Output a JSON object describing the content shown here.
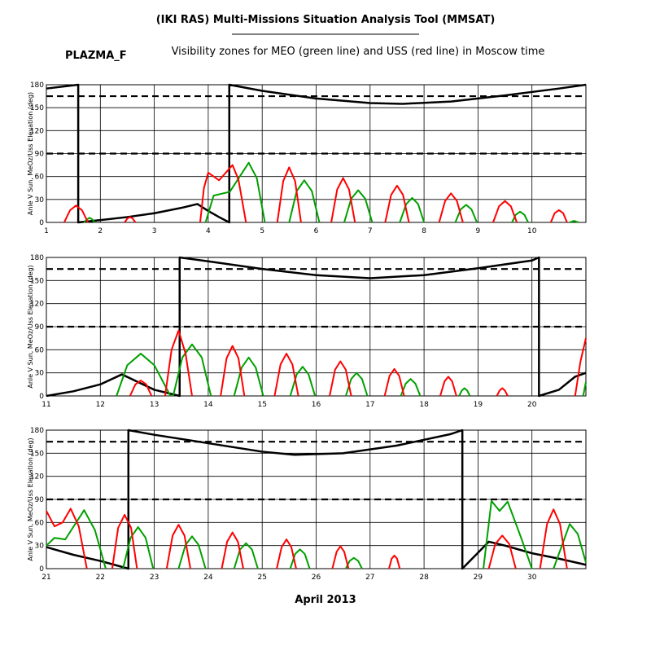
{
  "header": {
    "title": "(IKI RAS) Multi-Missions Situation Analysis Tool (MMSAT)",
    "satellite": "PLAZMA_F",
    "subtitle": "Visibility zones for MEO (green line) and USS (red line) in Moscow time"
  },
  "xlabel": "April 2013",
  "chart_data": [
    {
      "type": "line",
      "ylabel": "Anle V Sun, MeOz/Uss Elevation (deg)",
      "xlim": [
        1,
        11
      ],
      "xticks": [
        1,
        2,
        3,
        4,
        5,
        6,
        7,
        8,
        9,
        10
      ],
      "ylim": [
        0,
        180
      ],
      "yticks": [
        0,
        30,
        60,
        90,
        120,
        150,
        180
      ],
      "grid": true,
      "reference_lines": [
        165,
        90
      ],
      "series": [
        {
          "color": "#000000",
          "x": [
            1,
            1.59,
            1.59,
            2,
            2.5,
            3,
            3.5,
            3.8,
            4.0,
            4.2,
            4.39,
            4.39,
            5,
            6,
            7,
            7.6,
            8.5,
            9.5,
            10.5,
            11
          ],
          "values": [
            175,
            180,
            0,
            3,
            7,
            12,
            19,
            24,
            15,
            7,
            0,
            180,
            172,
            162,
            156,
            155,
            158,
            166,
            175,
            180
          ]
        },
        {
          "color": "#00a000",
          "x": [
            1.7,
            1.75,
            1.8,
            1.85,
            1.9,
            null,
            3.95,
            4.1,
            4.4,
            4.75,
            4.9,
            5.05,
            null,
            5.5,
            5.64,
            5.78,
            5.92,
            6.06,
            null,
            6.52,
            6.65,
            6.78,
            6.91,
            7.04,
            null,
            7.55,
            7.67,
            7.78,
            7.89,
            8.0,
            null,
            8.58,
            8.68,
            8.78,
            8.88,
            8.98,
            null,
            9.63,
            9.7,
            9.78,
            9.86,
            9.93,
            null,
            10.7,
            10.78,
            10.86
          ],
          "values": [
            0,
            4,
            6,
            4,
            0,
            null,
            0,
            35,
            40,
            78,
            58,
            0,
            null,
            0,
            41,
            55,
            41,
            0,
            null,
            0,
            31,
            42,
            31,
            0,
            null,
            0,
            24,
            32,
            24,
            0,
            null,
            0,
            17,
            23,
            17,
            0,
            null,
            0,
            10,
            14,
            10,
            0,
            null,
            0,
            2,
            0
          ]
        },
        {
          "color": "#ff0000",
          "x": [
            1.33,
            1.44,
            1.55,
            1.66,
            1.77,
            null,
            2.45,
            2.5,
            2.55,
            2.6,
            2.65,
            null,
            3.85,
            3.92,
            4.0,
            4.2,
            4.45,
            4.56,
            4.7,
            null,
            5.28,
            5.39,
            5.5,
            5.61,
            5.72,
            null,
            6.28,
            6.39,
            6.5,
            6.61,
            6.72,
            null,
            7.28,
            7.39,
            7.5,
            7.61,
            7.72,
            null,
            8.28,
            8.39,
            8.5,
            8.61,
            8.72,
            null,
            9.28,
            9.39,
            9.5,
            9.61,
            9.72,
            null,
            10.35,
            10.42,
            10.5,
            10.58,
            10.65
          ],
          "values": [
            0,
            16,
            22,
            16,
            0,
            null,
            0,
            5,
            7,
            5,
            0,
            null,
            0,
            45,
            65,
            55,
            75,
            56,
            0,
            null,
            0,
            54,
            72,
            54,
            0,
            null,
            0,
            43,
            58,
            43,
            0,
            null,
            0,
            36,
            48,
            36,
            0,
            null,
            0,
            28,
            38,
            28,
            0,
            null,
            0,
            21,
            28,
            21,
            0,
            null,
            0,
            12,
            16,
            12,
            0
          ]
        }
      ]
    },
    {
      "type": "line",
      "ylabel": "Anle V Sun, MeOz/Uss Elevation (deg)",
      "xlim": [
        11,
        21
      ],
      "xticks": [
        11,
        12,
        13,
        14,
        15,
        16,
        17,
        18,
        19,
        20
      ],
      "ylim": [
        0,
        180
      ],
      "yticks": [
        0,
        30,
        60,
        90,
        120,
        150,
        180
      ],
      "grid": true,
      "reference_lines": [
        165,
        90
      ],
      "series": [
        {
          "color": "#000000",
          "x": [
            11,
            11.5,
            12,
            12.4,
            12.7,
            13,
            13.47,
            13.47,
            14,
            15,
            16,
            17,
            18,
            19,
            20,
            20.13,
            20.13,
            20.5,
            20.8,
            21
          ],
          "values": [
            0,
            6,
            15,
            28,
            18,
            8,
            0,
            180,
            175,
            165,
            157,
            153,
            157,
            166,
            176,
            180,
            0,
            8,
            25,
            30
          ]
        },
        {
          "color": "#00a000",
          "x": [
            12.3,
            12.5,
            12.75,
            13.0,
            13.3,
            null,
            13.35,
            13.52,
            13.7,
            13.88,
            14.05,
            null,
            14.48,
            14.62,
            14.75,
            14.88,
            15.02,
            null,
            15.52,
            15.64,
            15.75,
            15.86,
            15.98,
            null,
            16.55,
            16.65,
            16.75,
            16.85,
            16.95,
            null,
            17.57,
            17.66,
            17.75,
            17.84,
            17.93,
            null,
            18.65,
            18.7,
            18.75,
            18.8,
            18.85,
            null,
            20.95,
            21
          ],
          "values": [
            0,
            40,
            55,
            40,
            0,
            null,
            0,
            50,
            67,
            50,
            0,
            null,
            0,
            37,
            50,
            37,
            0,
            null,
            0,
            28,
            38,
            28,
            0,
            null,
            0,
            22,
            30,
            22,
            0,
            null,
            0,
            16,
            22,
            16,
            0,
            null,
            0,
            7,
            10,
            7,
            0,
            null,
            0,
            18
          ]
        },
        {
          "color": "#ff0000",
          "x": [
            12.55,
            12.65,
            12.75,
            12.85,
            12.95,
            null,
            13.2,
            13.32,
            13.45,
            13.58,
            13.7,
            null,
            14.23,
            14.34,
            14.45,
            14.56,
            14.67,
            null,
            15.23,
            15.34,
            15.45,
            15.56,
            15.67,
            null,
            16.25,
            16.35,
            16.45,
            16.55,
            16.65,
            null,
            17.27,
            17.36,
            17.45,
            17.54,
            17.63,
            null,
            18.3,
            18.38,
            18.45,
            18.52,
            18.6,
            null,
            19.35,
            19.4,
            19.45,
            19.5,
            19.55,
            null,
            20.8,
            20.9,
            21
          ],
          "values": [
            0,
            15,
            20,
            15,
            0,
            null,
            0,
            60,
            85,
            55,
            0,
            null,
            0,
            49,
            65,
            49,
            0,
            null,
            0,
            41,
            55,
            41,
            0,
            null,
            0,
            34,
            45,
            34,
            0,
            null,
            0,
            26,
            35,
            26,
            0,
            null,
            0,
            19,
            25,
            19,
            0,
            null,
            0,
            7,
            10,
            7,
            0,
            null,
            0,
            45,
            75
          ]
        }
      ]
    },
    {
      "type": "line",
      "ylabel": "Anle V Sun, MeOz/Uss Elevation (deg)",
      "xlim": [
        21,
        31
      ],
      "xticks": [
        21,
        22,
        23,
        24,
        25,
        26,
        27,
        28,
        29,
        30
      ],
      "ylim": [
        0,
        180
      ],
      "yticks": [
        0,
        30,
        60,
        90,
        120,
        150,
        180
      ],
      "grid": true,
      "reference_lines": [
        165,
        90
      ],
      "series": [
        {
          "color": "#000000",
          "x": [
            21,
            21.5,
            22,
            22.52,
            22.52,
            23,
            24,
            25,
            25.6,
            26.5,
            27.5,
            28.5,
            28.71,
            28.71,
            29.2,
            29.5,
            30,
            30.5,
            31
          ],
          "values": [
            28,
            18,
            10,
            0,
            180,
            174,
            163,
            152,
            148,
            150,
            160,
            175,
            180,
            0,
            35,
            30,
            20,
            13,
            5
          ]
        },
        {
          "color": "#00a000",
          "x": [
            21,
            21.15,
            21.35,
            21.7,
            21.9,
            22.1,
            null,
            22.42,
            22.56,
            22.7,
            22.84,
            22.98,
            null,
            23.45,
            23.58,
            23.7,
            23.82,
            23.95,
            null,
            24.48,
            24.59,
            24.7,
            24.81,
            24.92,
            null,
            25.52,
            25.61,
            25.7,
            25.79,
            25.88,
            null,
            26.55,
            26.62,
            26.7,
            26.78,
            26.85,
            null,
            29.1,
            29.25,
            29.4,
            29.55,
            29.8,
            30.0,
            null,
            30.4,
            30.7,
            30.85,
            31
          ],
          "values": [
            30,
            40,
            38,
            76,
            50,
            0,
            null,
            0,
            40,
            54,
            40,
            0,
            null,
            0,
            31,
            42,
            31,
            0,
            null,
            0,
            25,
            33,
            25,
            0,
            null,
            0,
            19,
            25,
            19,
            0,
            null,
            0,
            10,
            14,
            10,
            0,
            null,
            0,
            88,
            75,
            87,
            40,
            0,
            null,
            0,
            58,
            45,
            8
          ]
        },
        {
          "color": "#ff0000",
          "x": [
            21,
            21.15,
            21.3,
            21.45,
            21.6,
            21.75,
            null,
            22.22,
            22.33,
            22.45,
            22.57,
            22.68,
            null,
            23.23,
            23.34,
            23.45,
            23.56,
            23.67,
            null,
            24.25,
            24.35,
            24.45,
            24.55,
            24.65,
            null,
            25.27,
            25.36,
            25.45,
            25.54,
            25.63,
            null,
            26.3,
            26.38,
            26.45,
            26.52,
            26.6,
            null,
            27.35,
            27.4,
            27.45,
            27.5,
            27.55,
            null,
            29.2,
            29.32,
            29.45,
            29.58,
            29.7,
            null,
            30.15,
            30.28,
            30.4,
            30.52,
            30.65
          ],
          "values": [
            75,
            55,
            60,
            78,
            55,
            0,
            null,
            0,
            53,
            70,
            53,
            0,
            null,
            0,
            43,
            57,
            43,
            0,
            null,
            0,
            35,
            47,
            35,
            0,
            null,
            0,
            28,
            38,
            28,
            0,
            null,
            0,
            22,
            29,
            22,
            0,
            null,
            0,
            13,
            17,
            13,
            0,
            null,
            0,
            32,
            43,
            32,
            0,
            null,
            0,
            58,
            77,
            58,
            0
          ]
        }
      ]
    }
  ]
}
